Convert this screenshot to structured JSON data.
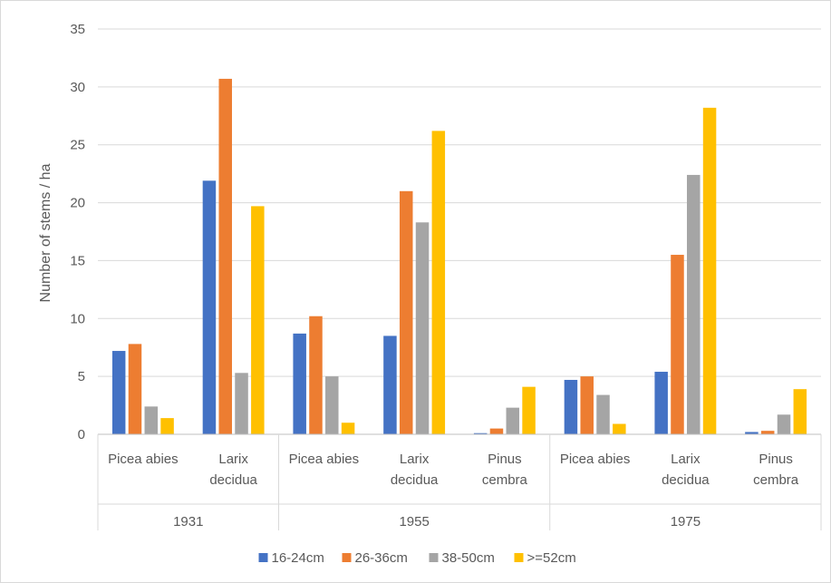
{
  "chart_data": {
    "type": "bar",
    "ylabel": "Number of stems / ha",
    "ylim": [
      0,
      35
    ],
    "yticks": [
      0,
      5,
      10,
      15,
      20,
      25,
      30,
      35
    ],
    "grid": true,
    "legend_position": "bottom",
    "groups": [
      {
        "label": "1931",
        "categories": [
          "Picea abies",
          "Larix decidua"
        ]
      },
      {
        "label": "1955",
        "categories": [
          "Picea abies",
          "Larix decidua",
          "Pinus cembra"
        ]
      },
      {
        "label": "1975",
        "categories": [
          "Picea abies",
          "Larix decidua",
          "Pinus cembra"
        ]
      }
    ],
    "series": [
      {
        "name": "16-24cm",
        "color": "#4472c4",
        "values": [
          7.2,
          21.9,
          8.7,
          8.5,
          0.1,
          4.7,
          5.4,
          0.2
        ]
      },
      {
        "name": "26-36cm",
        "color": "#ed7d31",
        "values": [
          7.8,
          30.7,
          10.2,
          21.0,
          0.5,
          5.0,
          15.5,
          0.3
        ]
      },
      {
        "name": "38-50cm",
        "color": "#a5a5a5",
        "values": [
          2.4,
          5.3,
          5.0,
          18.3,
          2.3,
          3.4,
          22.4,
          1.7
        ]
      },
      {
        "name": ">=52cm",
        "color": "#ffc000",
        "values": [
          1.4,
          19.7,
          1.0,
          26.2,
          4.1,
          0.9,
          28.2,
          3.9
        ]
      }
    ]
  }
}
